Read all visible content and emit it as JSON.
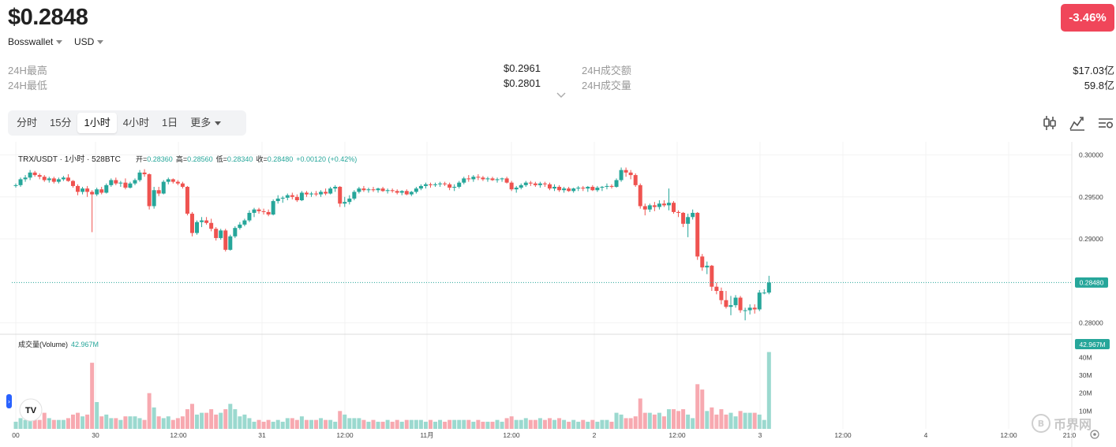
{
  "header": {
    "price": "$0.2848",
    "change": "-3.46%",
    "exchange": "Bosswallet",
    "currency": "USD"
  },
  "stats": {
    "high_label": "24H最高",
    "high_value": "$0.2961",
    "low_label": "24H最低",
    "low_value": "$0.2801",
    "turnover_label": "24H成交额",
    "turnover_value": "$17.03亿",
    "volume_label": "24H成交量",
    "volume_value": "59.8亿"
  },
  "tabs": [
    "分时",
    "15分",
    "1小时",
    "4小时",
    "1日",
    "更多"
  ],
  "active_tab": "1小时",
  "toolbar_icons": [
    "candlestick-icon",
    "indicator-icon",
    "settings-icon"
  ],
  "legend": {
    "symbol": "TRX/USDT · 1小时 · 528BTC",
    "open_label": "开=",
    "open": "0.28360",
    "high_label": "高=",
    "high": "0.28560",
    "low_label": "低=",
    "low": "0.28340",
    "close_label": "收=",
    "close": "0.28480",
    "change": "+0.00120 (+0.42%)"
  },
  "volume_legend": {
    "label": "成交量(Volume)",
    "value": "42.967M"
  },
  "price_axis": [
    "0.30000",
    "0.29500",
    "0.29000",
    "0.28000"
  ],
  "current_price_tag": "0.28480",
  "volume_axis": [
    "40M",
    "30M",
    "20M",
    "10M"
  ],
  "volume_tag": "42.967M",
  "time_axis": [
    "00",
    "30",
    "12:00",
    "31",
    "12:00",
    "11月",
    "12:00",
    "2",
    "12:00",
    "3",
    "12:00",
    "4",
    "12:00",
    "21:0"
  ],
  "watermark": "币界网",
  "colors": {
    "up": "#26a69a",
    "down": "#ef5350",
    "up_vol": "#9bd9cf",
    "down_vol": "#f7a9b0",
    "change_bg": "#f0465a"
  },
  "chart_data": {
    "type": "candlestick",
    "interval": "1h",
    "ylim": [
      0.2792,
      0.3008
    ],
    "volume_ylim": [
      0,
      45
    ],
    "volume_unit": "M",
    "current_price": 0.2848,
    "candles": [
      [
        0.2963,
        0.2966,
        0.2961,
        0.2964,
        4
      ],
      [
        0.2964,
        0.2973,
        0.2962,
        0.2971,
        6
      ],
      [
        0.2971,
        0.2976,
        0.2968,
        0.2973,
        5
      ],
      [
        0.2973,
        0.2982,
        0.297,
        0.2979,
        7
      ],
      [
        0.2979,
        0.2981,
        0.2974,
        0.2976,
        5
      ],
      [
        0.2976,
        0.2978,
        0.2971,
        0.2974,
        5
      ],
      [
        0.2974,
        0.2976,
        0.2968,
        0.297,
        9
      ],
      [
        0.297,
        0.2974,
        0.2967,
        0.2972,
        6
      ],
      [
        0.2972,
        0.2974,
        0.2966,
        0.2968,
        5
      ],
      [
        0.2968,
        0.2973,
        0.2966,
        0.2971,
        5
      ],
      [
        0.2971,
        0.2975,
        0.2969,
        0.2973,
        5
      ],
      [
        0.2973,
        0.2977,
        0.2968,
        0.2969,
        6
      ],
      [
        0.2969,
        0.297,
        0.2961,
        0.2963,
        8
      ],
      [
        0.2963,
        0.2965,
        0.2952,
        0.2956,
        9
      ],
      [
        0.2956,
        0.2962,
        0.2953,
        0.296,
        7
      ],
      [
        0.296,
        0.2963,
        0.295,
        0.2956,
        8
      ],
      [
        0.2956,
        0.2958,
        0.2908,
        0.2953,
        37
      ],
      [
        0.2953,
        0.2961,
        0.2951,
        0.2959,
        15
      ],
      [
        0.2959,
        0.2962,
        0.2953,
        0.2955,
        7
      ],
      [
        0.2955,
        0.2966,
        0.2954,
        0.2964,
        8
      ],
      [
        0.2964,
        0.2972,
        0.2962,
        0.297,
        6
      ],
      [
        0.297,
        0.2973,
        0.2964,
        0.2966,
        6
      ],
      [
        0.2966,
        0.2969,
        0.2962,
        0.2967,
        5
      ],
      [
        0.2967,
        0.2972,
        0.2959,
        0.2961,
        7
      ],
      [
        0.2961,
        0.2968,
        0.296,
        0.2966,
        7
      ],
      [
        0.2966,
        0.2972,
        0.2964,
        0.297,
        7
      ],
      [
        0.297,
        0.2982,
        0.2968,
        0.2979,
        6
      ],
      [
        0.2979,
        0.2983,
        0.2974,
        0.2977,
        5
      ],
      [
        0.2977,
        0.2978,
        0.2935,
        0.2939,
        20
      ],
      [
        0.2939,
        0.2962,
        0.2936,
        0.2958,
        12
      ],
      [
        0.2958,
        0.2962,
        0.2951,
        0.2954,
        7
      ],
      [
        0.2954,
        0.297,
        0.2953,
        0.2968,
        6
      ],
      [
        0.2968,
        0.2973,
        0.2965,
        0.2971,
        7
      ],
      [
        0.2971,
        0.2972,
        0.2966,
        0.2968,
        5
      ],
      [
        0.2968,
        0.297,
        0.2964,
        0.2966,
        6
      ],
      [
        0.2966,
        0.2968,
        0.296,
        0.2962,
        7
      ],
      [
        0.2962,
        0.2963,
        0.2928,
        0.293,
        11
      ],
      [
        0.293,
        0.2932,
        0.2903,
        0.2907,
        14
      ],
      [
        0.2907,
        0.2922,
        0.2905,
        0.292,
        8
      ],
      [
        0.292,
        0.2926,
        0.2914,
        0.2922,
        9
      ],
      [
        0.2922,
        0.2926,
        0.2917,
        0.2919,
        9
      ],
      [
        0.2919,
        0.2924,
        0.2909,
        0.2912,
        11
      ],
      [
        0.2912,
        0.2914,
        0.2898,
        0.2901,
        8
      ],
      [
        0.2901,
        0.2912,
        0.2899,
        0.291,
        9
      ],
      [
        0.291,
        0.2912,
        0.2885,
        0.2887,
        11
      ],
      [
        0.2887,
        0.2905,
        0.2886,
        0.2903,
        14
      ],
      [
        0.2903,
        0.2915,
        0.2901,
        0.2913,
        11
      ],
      [
        0.2913,
        0.292,
        0.2911,
        0.2917,
        7
      ],
      [
        0.2917,
        0.2924,
        0.2915,
        0.2922,
        8
      ],
      [
        0.2922,
        0.2934,
        0.292,
        0.2931,
        6
      ],
      [
        0.2931,
        0.2937,
        0.2926,
        0.2935,
        4
      ],
      [
        0.2935,
        0.2937,
        0.293,
        0.2933,
        5
      ],
      [
        0.2933,
        0.2936,
        0.2929,
        0.2932,
        4
      ],
      [
        0.2932,
        0.2935,
        0.2927,
        0.2929,
        5
      ],
      [
        0.2929,
        0.2947,
        0.2928,
        0.2945,
        4
      ],
      [
        0.2945,
        0.2952,
        0.2942,
        0.2948,
        5
      ],
      [
        0.2948,
        0.2951,
        0.2943,
        0.2949,
        4
      ],
      [
        0.2949,
        0.2954,
        0.2946,
        0.2952,
        6
      ],
      [
        0.2952,
        0.2955,
        0.2947,
        0.295,
        6
      ],
      [
        0.295,
        0.2953,
        0.2944,
        0.2946,
        5
      ],
      [
        0.2946,
        0.2957,
        0.2945,
        0.2955,
        7
      ],
      [
        0.2955,
        0.2957,
        0.295,
        0.2953,
        5
      ],
      [
        0.2953,
        0.2956,
        0.295,
        0.2954,
        5
      ],
      [
        0.2954,
        0.2957,
        0.2951,
        0.2953,
        5
      ],
      [
        0.2953,
        0.2958,
        0.295,
        0.2956,
        6
      ],
      [
        0.2956,
        0.296,
        0.2952,
        0.2954,
        5
      ],
      [
        0.2954,
        0.2962,
        0.2953,
        0.296,
        5
      ],
      [
        0.296,
        0.2964,
        0.2956,
        0.2962,
        4
      ],
      [
        0.2962,
        0.2963,
        0.2938,
        0.2942,
        10
      ],
      [
        0.2942,
        0.295,
        0.2938,
        0.2944,
        8
      ],
      [
        0.2944,
        0.2952,
        0.2941,
        0.2948,
        6
      ],
      [
        0.2948,
        0.2958,
        0.2946,
        0.2956,
        6
      ],
      [
        0.2956,
        0.2962,
        0.2954,
        0.296,
        6
      ],
      [
        0.296,
        0.2963,
        0.2956,
        0.2958,
        5
      ],
      [
        0.2958,
        0.2961,
        0.2955,
        0.2959,
        4
      ],
      [
        0.2959,
        0.2962,
        0.2956,
        0.2958,
        5
      ],
      [
        0.2958,
        0.2961,
        0.2955,
        0.296,
        4
      ],
      [
        0.296,
        0.2962,
        0.2956,
        0.2957,
        4
      ],
      [
        0.2957,
        0.296,
        0.2954,
        0.2958,
        5
      ],
      [
        0.2958,
        0.296,
        0.2955,
        0.2957,
        4
      ],
      [
        0.2957,
        0.2959,
        0.2953,
        0.2955,
        5
      ],
      [
        0.2955,
        0.2958,
        0.2952,
        0.2957,
        4
      ],
      [
        0.2957,
        0.2959,
        0.2952,
        0.2953,
        5
      ],
      [
        0.2953,
        0.2957,
        0.2951,
        0.2956,
        5
      ],
      [
        0.2956,
        0.2962,
        0.2954,
        0.296,
        5
      ],
      [
        0.296,
        0.2965,
        0.2958,
        0.2963,
        5
      ],
      [
        0.2963,
        0.2967,
        0.296,
        0.2965,
        4
      ],
      [
        0.2965,
        0.2967,
        0.2961,
        0.2964,
        5
      ],
      [
        0.2964,
        0.2967,
        0.2962,
        0.2965,
        4
      ],
      [
        0.2965,
        0.2968,
        0.2962,
        0.2966,
        5
      ],
      [
        0.2966,
        0.2968,
        0.2963,
        0.2965,
        4
      ],
      [
        0.2965,
        0.2967,
        0.2958,
        0.2961,
        5
      ],
      [
        0.2961,
        0.2965,
        0.2957,
        0.2962,
        5
      ],
      [
        0.2962,
        0.2969,
        0.296,
        0.2967,
        5
      ],
      [
        0.2967,
        0.2974,
        0.2965,
        0.2972,
        5
      ],
      [
        0.2972,
        0.2976,
        0.2968,
        0.2971,
        5
      ],
      [
        0.2971,
        0.2976,
        0.2968,
        0.2974,
        4
      ],
      [
        0.2974,
        0.2977,
        0.297,
        0.2973,
        5
      ],
      [
        0.2973,
        0.2975,
        0.2969,
        0.2971,
        4
      ],
      [
        0.2971,
        0.2974,
        0.2968,
        0.2972,
        4
      ],
      [
        0.2972,
        0.2974,
        0.2969,
        0.297,
        4
      ],
      [
        0.297,
        0.2973,
        0.2967,
        0.2971,
        5
      ],
      [
        0.2971,
        0.2973,
        0.2968,
        0.2972,
        4
      ],
      [
        0.2972,
        0.2974,
        0.2966,
        0.2967,
        6
      ],
      [
        0.2967,
        0.2969,
        0.2957,
        0.2959,
        7
      ],
      [
        0.2959,
        0.2963,
        0.2955,
        0.2961,
        5
      ],
      [
        0.2961,
        0.2966,
        0.2959,
        0.2964,
        5
      ],
      [
        0.2964,
        0.2969,
        0.2962,
        0.2967,
        6
      ],
      [
        0.2967,
        0.2969,
        0.2963,
        0.2966,
        5
      ],
      [
        0.2966,
        0.2968,
        0.2962,
        0.2964,
        5
      ],
      [
        0.2964,
        0.2968,
        0.2961,
        0.2966,
        6
      ],
      [
        0.2966,
        0.2968,
        0.2962,
        0.2965,
        5
      ],
      [
        0.2965,
        0.2967,
        0.2958,
        0.296,
        6
      ],
      [
        0.296,
        0.2965,
        0.2957,
        0.2962,
        5
      ],
      [
        0.2962,
        0.2964,
        0.2956,
        0.2958,
        6
      ],
      [
        0.2958,
        0.2962,
        0.2955,
        0.296,
        5
      ],
      [
        0.296,
        0.2962,
        0.2956,
        0.2957,
        4
      ],
      [
        0.2957,
        0.2961,
        0.2955,
        0.296,
        5
      ],
      [
        0.296,
        0.2963,
        0.2957,
        0.2961,
        4
      ],
      [
        0.2961,
        0.2963,
        0.2957,
        0.296,
        5
      ],
      [
        0.296,
        0.2963,
        0.2956,
        0.2962,
        4
      ],
      [
        0.2962,
        0.2964,
        0.2957,
        0.2958,
        5
      ],
      [
        0.2958,
        0.2963,
        0.2956,
        0.2961,
        4
      ],
      [
        0.2961,
        0.2963,
        0.2957,
        0.2962,
        5
      ],
      [
        0.2962,
        0.2966,
        0.2959,
        0.2963,
        5
      ],
      [
        0.2963,
        0.2965,
        0.296,
        0.2962,
        4
      ],
      [
        0.2962,
        0.2972,
        0.2961,
        0.297,
        9
      ],
      [
        0.297,
        0.2985,
        0.2968,
        0.2982,
        8
      ],
      [
        0.2982,
        0.2985,
        0.2974,
        0.2979,
        6
      ],
      [
        0.2979,
        0.2982,
        0.2971,
        0.2976,
        6
      ],
      [
        0.2976,
        0.2978,
        0.2962,
        0.2964,
        7
      ],
      [
        0.2964,
        0.2966,
        0.2936,
        0.2939,
        17
      ],
      [
        0.2939,
        0.2942,
        0.2928,
        0.2935,
        9
      ],
      [
        0.2935,
        0.2942,
        0.2932,
        0.294,
        9
      ],
      [
        0.294,
        0.2944,
        0.2933,
        0.2938,
        8
      ],
      [
        0.2938,
        0.2946,
        0.2935,
        0.2942,
        9
      ],
      [
        0.2942,
        0.2946,
        0.2938,
        0.294,
        7
      ],
      [
        0.294,
        0.296,
        0.2934,
        0.2943,
        11
      ],
      [
        0.2943,
        0.2945,
        0.293,
        0.2932,
        11
      ],
      [
        0.2932,
        0.2934,
        0.2926,
        0.2931,
        10
      ],
      [
        0.2931,
        0.2932,
        0.2914,
        0.2918,
        11
      ],
      [
        0.2918,
        0.293,
        0.2902,
        0.2926,
        8
      ],
      [
        0.2926,
        0.2935,
        0.2923,
        0.2931,
        6
      ],
      [
        0.2931,
        0.2932,
        0.2875,
        0.2879,
        25
      ],
      [
        0.2879,
        0.2882,
        0.2862,
        0.2866,
        22
      ],
      [
        0.2866,
        0.2873,
        0.2858,
        0.2868,
        10
      ],
      [
        0.2868,
        0.2869,
        0.2838,
        0.2843,
        12
      ],
      [
        0.2843,
        0.2848,
        0.2834,
        0.2838,
        8
      ],
      [
        0.2838,
        0.2842,
        0.2822,
        0.2827,
        11
      ],
      [
        0.2827,
        0.2838,
        0.2817,
        0.2819,
        8
      ],
      [
        0.2819,
        0.2832,
        0.2809,
        0.2821,
        9
      ],
      [
        0.2821,
        0.2833,
        0.2818,
        0.283,
        7
      ],
      [
        0.283,
        0.2832,
        0.2812,
        0.2815,
        10
      ],
      [
        0.2815,
        0.2818,
        0.2803,
        0.2815,
        9
      ],
      [
        0.2815,
        0.2822,
        0.281,
        0.2818,
        9
      ],
      [
        0.2818,
        0.2822,
        0.2811,
        0.2816,
        9
      ],
      [
        0.2816,
        0.2839,
        0.2814,
        0.2836,
        8
      ],
      [
        0.2836,
        0.284,
        0.2834,
        0.2836,
        5
      ],
      [
        0.2836,
        0.2856,
        0.2834,
        0.2848,
        43
      ]
    ]
  }
}
